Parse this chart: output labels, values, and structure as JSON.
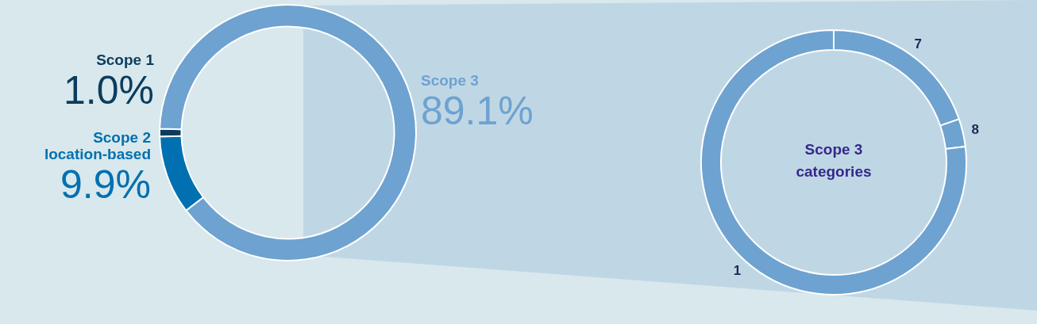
{
  "chart_data": [
    {
      "type": "donut",
      "categories": [
        "Scope 1",
        "Scope 3",
        "Scope 2\nlocation-based"
      ],
      "values": [
        1.0,
        89.1,
        9.9
      ],
      "value_labels": [
        "1.0%",
        "89.1%",
        "9.9%"
      ],
      "colors": [
        "#0b3c5d",
        "#6ea2d0",
        "#0070b0"
      ],
      "legend": false
    },
    {
      "type": "donut",
      "title": "Scope 3\ncategories",
      "categories": [
        "7",
        "8",
        "1"
      ],
      "values": [
        19.7,
        3.4,
        76.9
      ],
      "colors": [
        "#6ea2d0",
        "#6ea2d0",
        "#6ea2d0"
      ],
      "legend": false
    }
  ]
}
